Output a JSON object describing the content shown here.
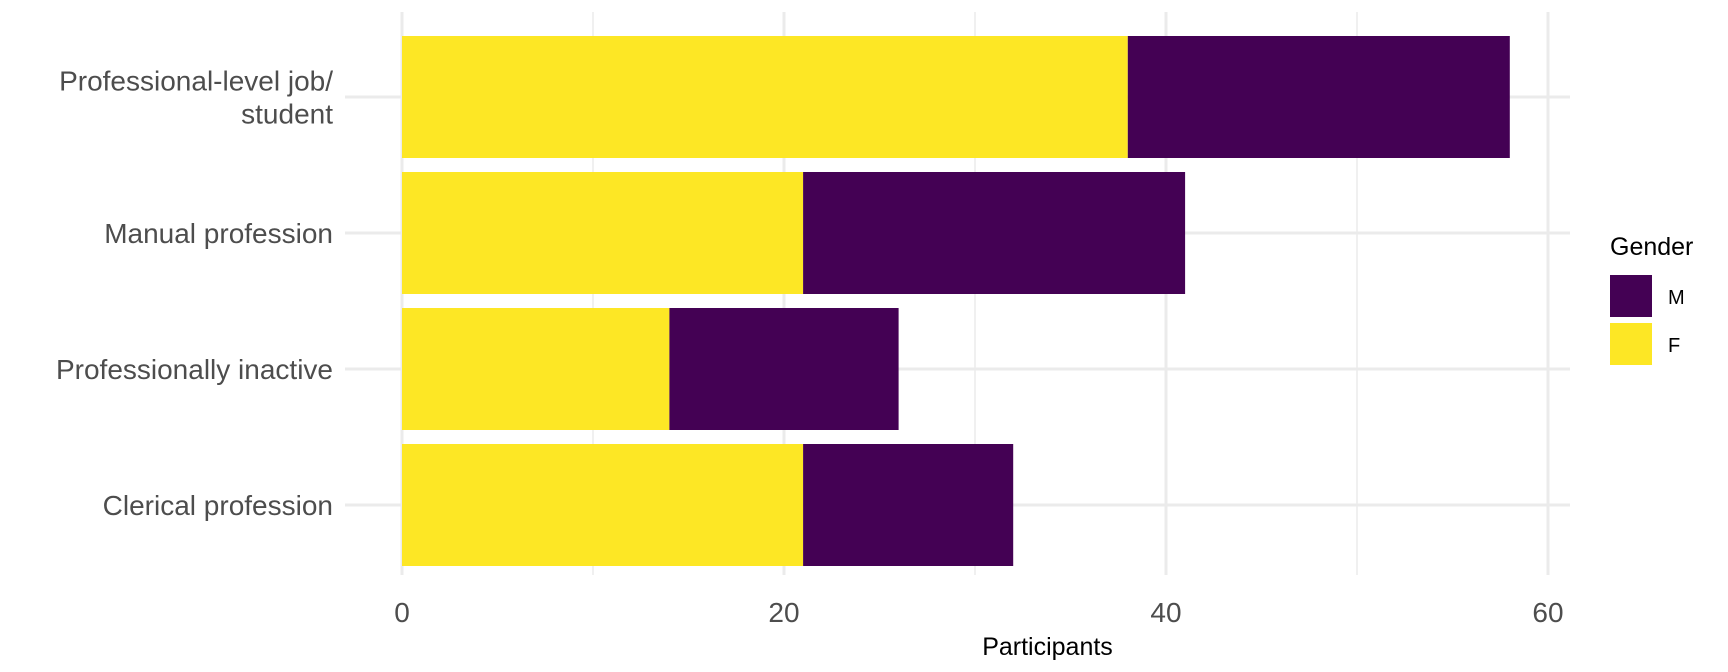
{
  "chart_data": {
    "type": "bar",
    "orientation": "horizontal",
    "stacked": true,
    "title": "",
    "xlabel": "Participants",
    "ylabel": "",
    "xlim": [
      0,
      61
    ],
    "x_ticks": [
      0,
      20,
      40,
      60
    ],
    "grid": true,
    "legend_placement": "right",
    "legend_title": "Gender",
    "categories": [
      [
        "Professional-level job/",
        "student"
      ],
      [
        "Manual profession"
      ],
      [
        "Professionally inactive"
      ],
      [
        "Clerical profession"
      ]
    ],
    "series": [
      {
        "name": "F",
        "color": "#FDE725",
        "values": [
          38,
          21,
          14,
          21
        ]
      },
      {
        "name": "M",
        "color": "#440154",
        "values": [
          20,
          20,
          12,
          11
        ]
      }
    ],
    "legend_order": [
      "M",
      "F"
    ]
  }
}
